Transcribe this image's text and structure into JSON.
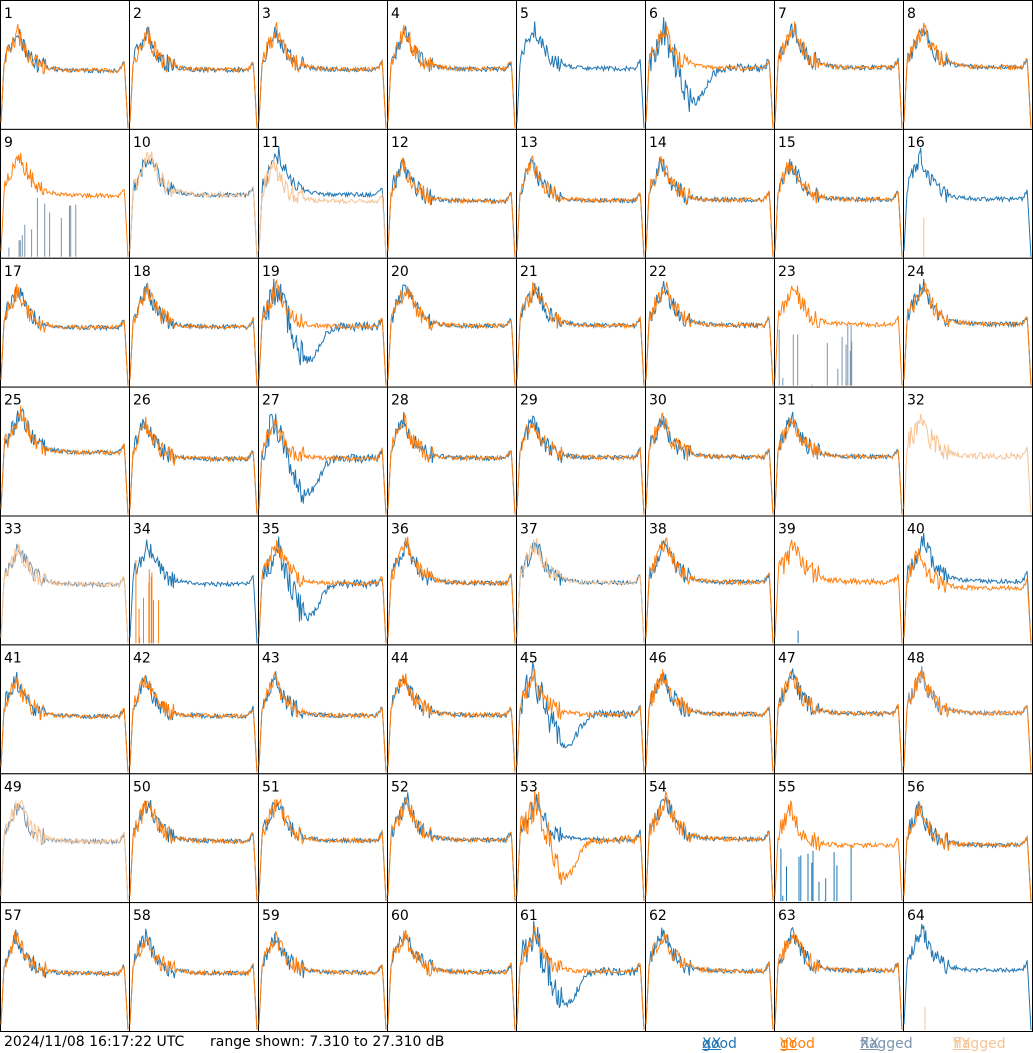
{
  "footer": {
    "timestamp": "2024/11/08 16:17:22 UTC",
    "range_text": "range shown: 7.310 to 27.310 dB"
  },
  "legend": {
    "good_xx": {
      "word": "good",
      "pol": "XX",
      "color": "#1f77b4"
    },
    "good_yy": {
      "word": "good",
      "pol": "YY",
      "color": "#ff7f0e"
    },
    "flagged_xx": {
      "word": "flagged",
      "pol": "XX",
      "color": "#7c95ad"
    },
    "flagged_yy": {
      "word": "flagged",
      "pol": "YY",
      "color": "#f7c393"
    }
  },
  "chart_data": {
    "type": "line",
    "title": "",
    "range_db": [
      7.31,
      27.31
    ],
    "grid": {
      "rows": 8,
      "cols": 8
    },
    "panels": [
      {
        "id": "1",
        "xx": "good",
        "yy": "good"
      },
      {
        "id": "2",
        "xx": "good",
        "yy": "good"
      },
      {
        "id": "3",
        "xx": "good",
        "yy": "good"
      },
      {
        "id": "4",
        "xx": "good",
        "yy": "good"
      },
      {
        "id": "5",
        "xx": "good",
        "yy": "flagged",
        "shape": "xx-only"
      },
      {
        "id": "6",
        "xx": "good",
        "yy": "good",
        "shape": "xx-dip"
      },
      {
        "id": "7",
        "xx": "good",
        "yy": "good"
      },
      {
        "id": "8",
        "xx": "good",
        "yy": "good"
      },
      {
        "id": "9",
        "xx": "flagged",
        "yy": "good",
        "shape": "xx-spikes"
      },
      {
        "id": "10",
        "xx": "good",
        "yy": "flagged"
      },
      {
        "id": "11",
        "xx": "good",
        "yy": "flagged"
      },
      {
        "id": "12",
        "xx": "good",
        "yy": "good"
      },
      {
        "id": "13",
        "xx": "good",
        "yy": "good"
      },
      {
        "id": "14",
        "xx": "good",
        "yy": "good"
      },
      {
        "id": "15",
        "xx": "good",
        "yy": "good"
      },
      {
        "id": "16",
        "xx": "good",
        "yy": "flagged",
        "shape": "xx-only"
      },
      {
        "id": "17",
        "xx": "good",
        "yy": "good"
      },
      {
        "id": "18",
        "xx": "good",
        "yy": "good"
      },
      {
        "id": "19",
        "xx": "good",
        "yy": "good",
        "shape": "xx-dip"
      },
      {
        "id": "20",
        "xx": "good",
        "yy": "good"
      },
      {
        "id": "21",
        "xx": "good",
        "yy": "good"
      },
      {
        "id": "22",
        "xx": "good",
        "yy": "good"
      },
      {
        "id": "23",
        "xx": "flagged",
        "yy": "good",
        "shape": "xx-spikes"
      },
      {
        "id": "24",
        "xx": "good",
        "yy": "good"
      },
      {
        "id": "25",
        "xx": "good",
        "yy": "good"
      },
      {
        "id": "26",
        "xx": "good",
        "yy": "good"
      },
      {
        "id": "27",
        "xx": "good",
        "yy": "good",
        "shape": "xx-dip"
      },
      {
        "id": "28",
        "xx": "good",
        "yy": "good"
      },
      {
        "id": "29",
        "xx": "good",
        "yy": "good"
      },
      {
        "id": "30",
        "xx": "good",
        "yy": "good"
      },
      {
        "id": "31",
        "xx": "good",
        "yy": "good"
      },
      {
        "id": "32",
        "xx": "flagged",
        "yy": "flagged",
        "shape": "yy-only"
      },
      {
        "id": "33",
        "xx": "flagged",
        "yy": "flagged"
      },
      {
        "id": "34",
        "xx": "good",
        "yy": "good",
        "shape": "yy-spikes"
      },
      {
        "id": "35",
        "xx": "good",
        "yy": "good",
        "shape": "xx-dip"
      },
      {
        "id": "36",
        "xx": "good",
        "yy": "good"
      },
      {
        "id": "37",
        "xx": "good",
        "yy": "flagged"
      },
      {
        "id": "38",
        "xx": "good",
        "yy": "good"
      },
      {
        "id": "39",
        "xx": "good",
        "yy": "good",
        "shape": "yy-only"
      },
      {
        "id": "40",
        "xx": "good",
        "yy": "good"
      },
      {
        "id": "41",
        "xx": "good",
        "yy": "good"
      },
      {
        "id": "42",
        "xx": "good",
        "yy": "good"
      },
      {
        "id": "43",
        "xx": "good",
        "yy": "good"
      },
      {
        "id": "44",
        "xx": "good",
        "yy": "good"
      },
      {
        "id": "45",
        "xx": "good",
        "yy": "good",
        "shape": "xx-dip"
      },
      {
        "id": "46",
        "xx": "good",
        "yy": "good"
      },
      {
        "id": "47",
        "xx": "good",
        "yy": "good"
      },
      {
        "id": "48",
        "xx": "flagged",
        "yy": "good"
      },
      {
        "id": "49",
        "xx": "flagged",
        "yy": "flagged"
      },
      {
        "id": "50",
        "xx": "good",
        "yy": "good"
      },
      {
        "id": "51",
        "xx": "good",
        "yy": "good"
      },
      {
        "id": "52",
        "xx": "good",
        "yy": "good"
      },
      {
        "id": "53",
        "xx": "good",
        "yy": "good",
        "shape": "yy-dip"
      },
      {
        "id": "54",
        "xx": "good",
        "yy": "good"
      },
      {
        "id": "55",
        "xx": "good",
        "yy": "good",
        "shape": "xx-spikes"
      },
      {
        "id": "56",
        "xx": "good",
        "yy": "good"
      },
      {
        "id": "57",
        "xx": "good",
        "yy": "good"
      },
      {
        "id": "58",
        "xx": "good",
        "yy": "good"
      },
      {
        "id": "59",
        "xx": "good",
        "yy": "good"
      },
      {
        "id": "60",
        "xx": "good",
        "yy": "good"
      },
      {
        "id": "61",
        "xx": "good",
        "yy": "good",
        "shape": "xx-dip"
      },
      {
        "id": "62",
        "xx": "good",
        "yy": "good"
      },
      {
        "id": "63",
        "xx": "good",
        "yy": "good"
      },
      {
        "id": "64",
        "xx": "good",
        "yy": "flagged",
        "shape": "xx-only"
      }
    ]
  }
}
